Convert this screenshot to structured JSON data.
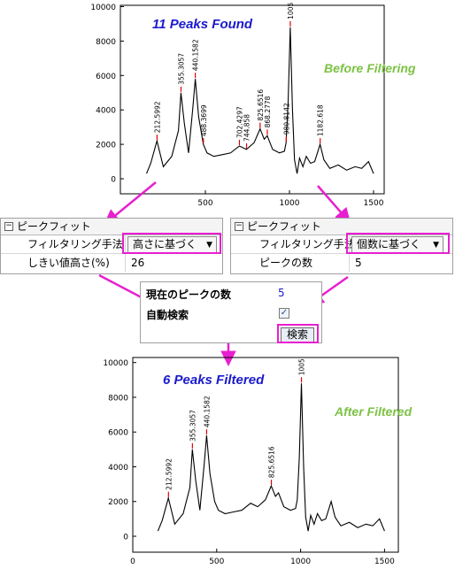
{
  "charts": {
    "top": {
      "title": "11 Peaks Found",
      "title_color": "#1a1acc",
      "annotation": "Before Filtering",
      "annotation_color": "#7cc243",
      "y_ticks": [
        "10000",
        "8000",
        "6000",
        "4000",
        "2000",
        "0"
      ],
      "x_ticks": [
        "500",
        "1000",
        "1500"
      ],
      "peak_labels": [
        "212.5992",
        "355.3057",
        "440.1582",
        "488.3699",
        "702.4297",
        "744.858",
        "825.6516",
        "868.2778",
        "980.8142",
        "1005",
        "1182.618"
      ]
    },
    "bottom": {
      "title": "6 Peaks Filtered",
      "title_color": "#1a1acc",
      "annotation": "After Filtered",
      "annotation_color": "#7cc243",
      "y_ticks": [
        "10000",
        "8000",
        "6000",
        "4000",
        "2000",
        "0"
      ],
      "x_ticks": [
        "0",
        "500",
        "1000",
        "1500"
      ],
      "peak_labels": [
        "212.5992",
        "355.3057",
        "440.1582",
        "825.6516",
        "1005"
      ]
    }
  },
  "chart_data": [
    {
      "type": "line",
      "title": "11 Peaks Found",
      "xlim": [
        0,
        1700
      ],
      "ylim": [
        -500,
        10000
      ],
      "x": [
        150,
        175,
        212,
        250,
        300,
        340,
        355,
        375,
        400,
        425,
        440,
        460,
        488,
        510,
        550,
        600,
        650,
        702,
        744,
        790,
        825,
        850,
        868,
        900,
        940,
        970,
        980,
        992,
        1005,
        1018,
        1030,
        1045,
        1060,
        1080,
        1100,
        1125,
        1150,
        1182,
        1205,
        1240,
        1290,
        1340,
        1390,
        1430,
        1470,
        1500
      ],
      "y": [
        300,
        900,
        2200,
        700,
        1300,
        2800,
        5000,
        3200,
        1500,
        4100,
        5800,
        3600,
        2000,
        1500,
        1300,
        1400,
        1500,
        1900,
        1700,
        2100,
        2900,
        2300,
        2500,
        1700,
        1500,
        1600,
        2100,
        4500,
        8800,
        4000,
        1100,
        300,
        1200,
        700,
        1300,
        900,
        1000,
        2000,
        1100,
        600,
        800,
        500,
        700,
        600,
        1000,
        300
      ],
      "peak_labels": [
        "212.5992",
        "355.3057",
        "440.1582",
        "488.3699",
        "702.4297",
        "744.858",
        "825.6516",
        "868.2778",
        "980.8142",
        "1005",
        "1182.618"
      ]
    },
    {
      "type": "line",
      "title": "6 Peaks Filtered",
      "xlim": [
        0,
        1700
      ],
      "ylim": [
        -500,
        10000
      ],
      "x": [
        150,
        175,
        212,
        250,
        300,
        340,
        355,
        375,
        400,
        425,
        440,
        460,
        488,
        510,
        550,
        600,
        650,
        702,
        744,
        790,
        825,
        850,
        868,
        900,
        940,
        970,
        980,
        992,
        1005,
        1018,
        1030,
        1045,
        1060,
        1080,
        1100,
        1125,
        1150,
        1182,
        1205,
        1240,
        1290,
        1340,
        1390,
        1430,
        1470,
        1500
      ],
      "y": [
        300,
        900,
        2200,
        700,
        1300,
        2800,
        5000,
        3200,
        1500,
        4100,
        5800,
        3600,
        2000,
        1500,
        1300,
        1400,
        1500,
        1900,
        1700,
        2100,
        2900,
        2300,
        2500,
        1700,
        1500,
        1600,
        2100,
        4500,
        8800,
        4000,
        1100,
        300,
        1200,
        700,
        1300,
        900,
        1000,
        2000,
        1100,
        600,
        800,
        500,
        700,
        600,
        1000,
        300
      ],
      "peak_labels": [
        "212.5992",
        "355.3057",
        "440.1582",
        "825.6516",
        "1005"
      ]
    }
  ],
  "panels": {
    "left": {
      "header": "ピークフィット",
      "expander": "⊟",
      "method_label": "フィルタリング手法",
      "method_value": "高さに基づく",
      "threshold_label": "しきい値高さ(%)",
      "threshold_value": "26"
    },
    "right": {
      "header": "ピークフィット",
      "expander": "⊟",
      "method_label": "フィルタリング手法",
      "method_value": "個数に基づく",
      "count_label": "ピークの数",
      "count_value": "5"
    },
    "middle": {
      "current_label": "現在のピークの数",
      "current_value": "5",
      "auto_label": "自動検索",
      "auto_checked": "✓",
      "search_button": "検索"
    }
  },
  "colors": {
    "highlight": "#e81fd0",
    "arrow": "#e81fd0",
    "peak_marker": "#e00000",
    "line": "#000000",
    "link_value": "#1a1acc"
  }
}
